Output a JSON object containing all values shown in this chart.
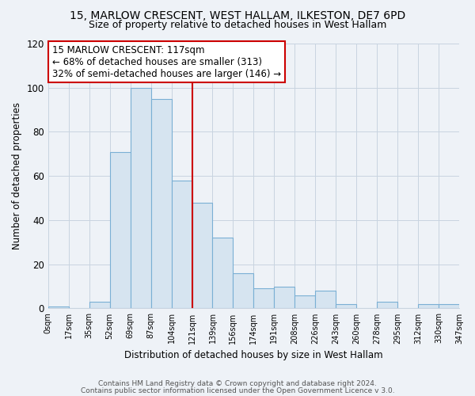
{
  "title": "15, MARLOW CRESCENT, WEST HALLAM, ILKESTON, DE7 6PD",
  "subtitle": "Size of property relative to detached houses in West Hallam",
  "xlabel": "Distribution of detached houses by size in West Hallam",
  "ylabel": "Number of detached properties",
  "bar_color": "#d6e4f0",
  "bar_edge_color": "#7aafd4",
  "bin_labels": [
    "0sqm",
    "17sqm",
    "35sqm",
    "52sqm",
    "69sqm",
    "87sqm",
    "104sqm",
    "121sqm",
    "139sqm",
    "156sqm",
    "174sqm",
    "191sqm",
    "208sqm",
    "226sqm",
    "243sqm",
    "260sqm",
    "278sqm",
    "295sqm",
    "312sqm",
    "330sqm",
    "347sqm"
  ],
  "counts": [
    1,
    0,
    3,
    71,
    100,
    95,
    58,
    48,
    32,
    16,
    9,
    10,
    6,
    8,
    2,
    0,
    3,
    0,
    2,
    2
  ],
  "property_bin_index": 6,
  "property_label": "15 MARLOW CRESCENT: 117sqm",
  "annotation_line1": "← 68% of detached houses are smaller (313)",
  "annotation_line2": "32% of semi-detached houses are larger (146) →",
  "vline_color": "#cc0000",
  "annotation_box_edge": "#cc0000",
  "footer1": "Contains HM Land Registry data © Crown copyright and database right 2024.",
  "footer2": "Contains public sector information licensed under the Open Government Licence v 3.0.",
  "ylim": [
    0,
    120
  ],
  "bg_color": "#eef2f7",
  "plot_bg_color": "#eef2f7",
  "grid_color": "#c8d4e0",
  "title_fontsize": 10,
  "subtitle_fontsize": 9,
  "annotation_fontsize": 8.5,
  "axis_fontsize": 8.5,
  "footer_fontsize": 6.5
}
